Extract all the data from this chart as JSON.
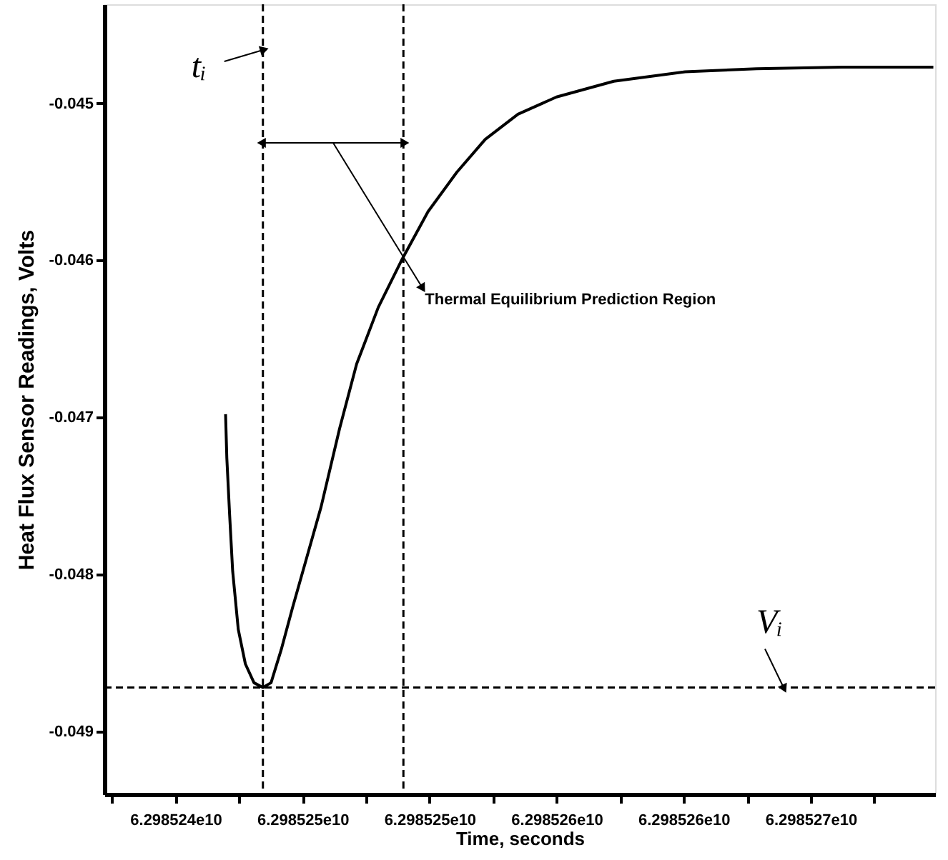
{
  "chart_data": {
    "type": "line",
    "xlabel": "Time, seconds",
    "ylabel": "Heat Flux Sensor Readings, Volts",
    "xlim": [
      62985237200,
      62985269900
    ],
    "ylim": [
      -0.0494,
      -0.04437
    ],
    "xticks": [
      {
        "value": 62985237500,
        "label": null
      },
      {
        "value": 62985240000,
        "label": "6.298524e10"
      },
      {
        "value": 62985242500,
        "label": null
      },
      {
        "value": 62985245000,
        "label": "6.298525e10"
      },
      {
        "value": 62985247500,
        "label": null
      },
      {
        "value": 62985250000,
        "label": "6.298525e10"
      },
      {
        "value": 62985252500,
        "label": null
      },
      {
        "value": 62985255000,
        "label": "6.298526e10"
      },
      {
        "value": 62985257500,
        "label": null
      },
      {
        "value": 62985260000,
        "label": "6.298526e10"
      },
      {
        "value": 62985262500,
        "label": null
      },
      {
        "value": 62985265000,
        "label": "6.298527e10"
      },
      {
        "value": 62985267500,
        "label": null
      }
    ],
    "yticks": [
      -0.049,
      -0.048,
      -0.047,
      -0.046,
      -0.045
    ],
    "grid": false,
    "marker": "none",
    "line_style": "solid",
    "series": [
      {
        "color": "#000000",
        "x": [
          62985241970,
          62985242020,
          62985242130,
          62985242250,
          62985242470,
          62985242750,
          62985243090,
          62985243440,
          62985243760,
          62985244160,
          62985244610,
          62985245170,
          62985245730,
          62985246460,
          62985247130,
          62985247980,
          62985248930,
          62985249940,
          62985251070,
          62985252190,
          62985253480,
          62985255000,
          62985257250,
          62985260060,
          62985262870,
          62985266240,
          62985269830
        ],
        "values": [
          -0.04698,
          -0.04726,
          -0.04762,
          -0.04798,
          -0.04835,
          -0.04857,
          -0.04869,
          -0.04872,
          -0.04869,
          -0.04848,
          -0.04821,
          -0.04789,
          -0.04757,
          -0.04707,
          -0.04666,
          -0.0463,
          -0.04599,
          -0.04569,
          -0.04544,
          -0.04523,
          -0.04507,
          -0.04496,
          -0.04486,
          -0.0448,
          -0.04478,
          -0.04477,
          -0.04477
        ]
      }
    ],
    "ref_lines": [
      {
        "axis": "x",
        "value": 62985243440,
        "label": "tᵢ",
        "color": "#000000",
        "line_style": "dashed"
      },
      {
        "axis": "x",
        "value": 62985248970,
        "label": null,
        "color": "#000000",
        "line_style": "dashed"
      },
      {
        "axis": "y",
        "value": -0.04872,
        "label": "Vᵢ",
        "color": "#000000",
        "line_style": "dashed"
      }
    ],
    "annotations": [
      "Thermal Equilibrium Prediction Region"
    ]
  }
}
